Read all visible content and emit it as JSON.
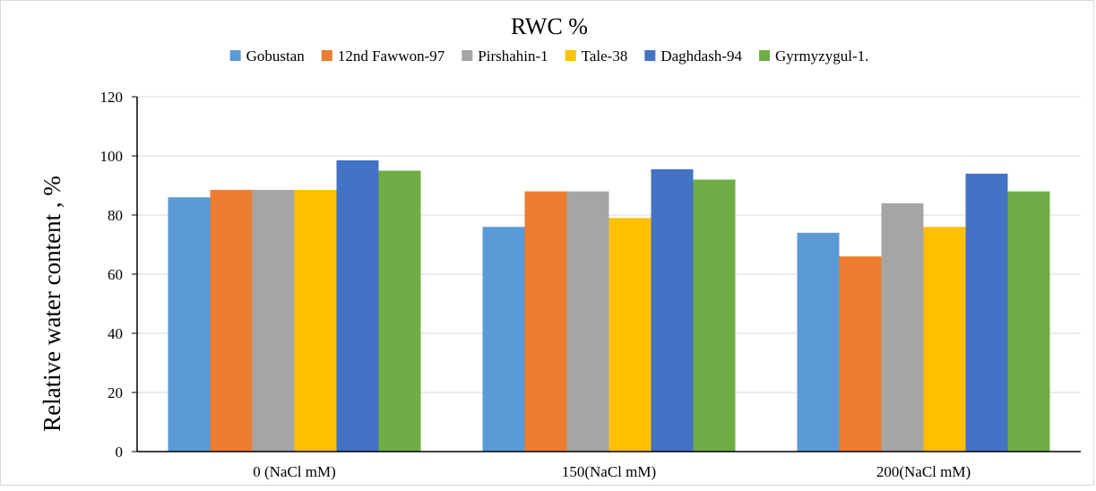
{
  "chart_data": {
    "type": "bar",
    "title": "RWC %",
    "ylabel": "Relative water content , %",
    "xlabel": "",
    "ylim": [
      0,
      120
    ],
    "yticks": [
      0,
      20,
      40,
      60,
      80,
      100,
      120
    ],
    "grid": true,
    "legend_position": "top",
    "categories": [
      "0 (NaCl mM)",
      "150(NaCl mM)",
      "200(NaCl mM)"
    ],
    "series": [
      {
        "name": "Gobustan",
        "color": "#5b9bd5",
        "values": [
          86,
          76,
          74
        ]
      },
      {
        "name": "12nd Fawwon-97",
        "color": "#ed7d31",
        "values": [
          88.5,
          88,
          66
        ]
      },
      {
        "name": "Pirshahin-1",
        "color": "#a5a5a5",
        "values": [
          88.5,
          88,
          84
        ]
      },
      {
        "name": "Tale-38",
        "color": "#ffc000",
        "values": [
          88.5,
          79,
          76
        ]
      },
      {
        "name": "Daghdash-94",
        "color": "#4472c4",
        "values": [
          98.5,
          95.5,
          94
        ]
      },
      {
        "name": "Gyrmyzygul-1.",
        "color": "#70ad47",
        "values": [
          95,
          92,
          88
        ]
      }
    ]
  }
}
